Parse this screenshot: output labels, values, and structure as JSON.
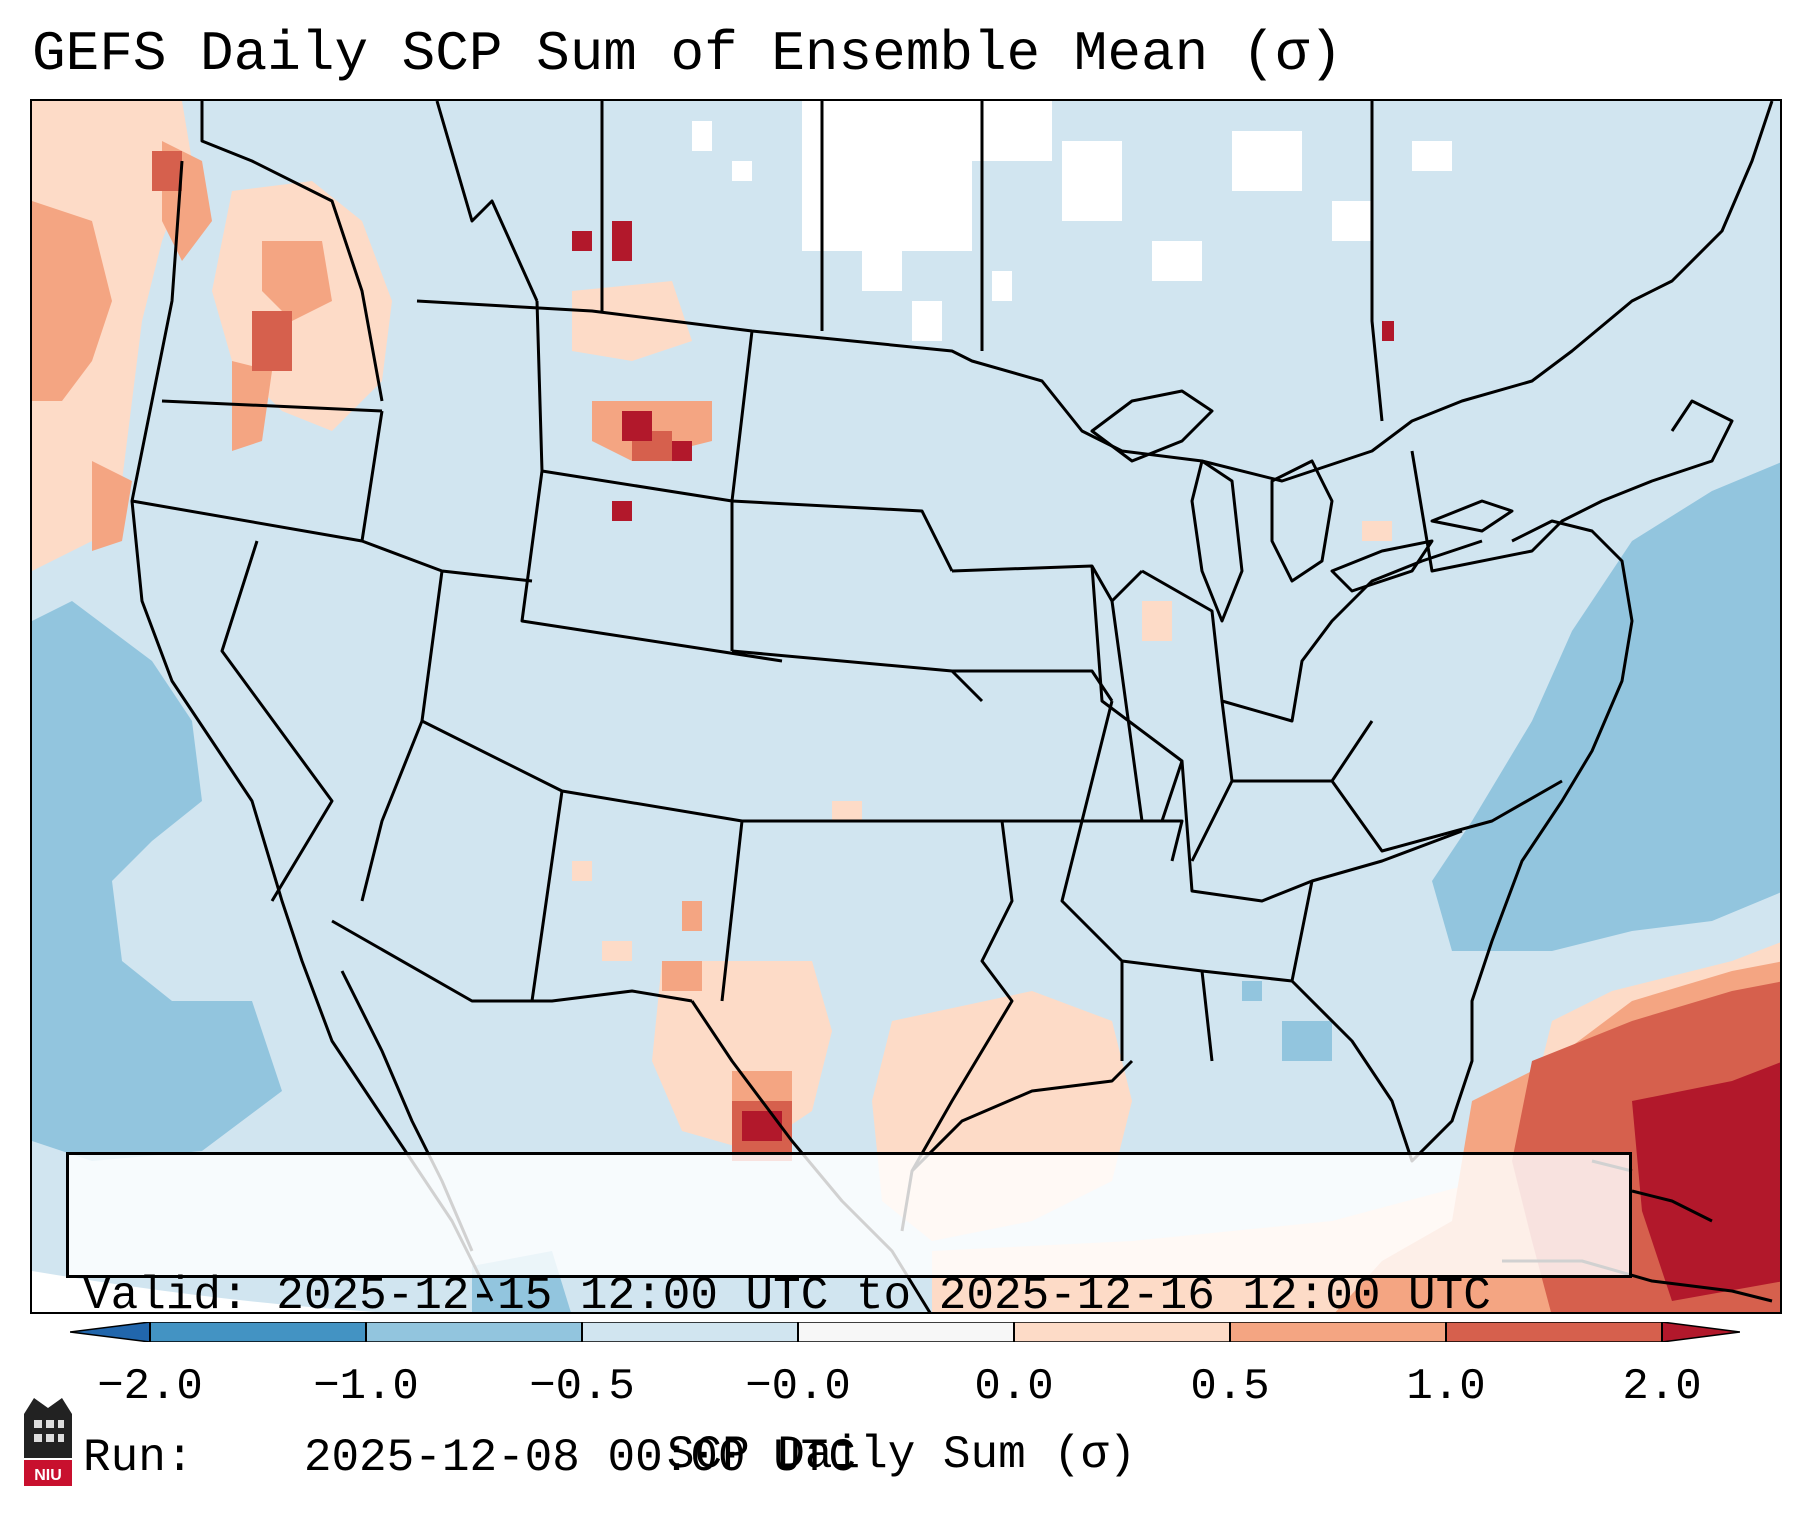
{
  "title": "GEFS Daily SCP Sum of Ensemble Mean (σ)",
  "info": {
    "valid_label": "Valid:",
    "valid_value": "2025-12-15 12:00 UTC to 2025-12-16 12:00 UTC",
    "run_label": "Run:",
    "run_value": "2025-12-08 00:00 UTC"
  },
  "colorbar": {
    "label": "SCP Daily Sum (σ)",
    "tick_labels": [
      "−2.0",
      "−1.0",
      "−0.5",
      "−0.0",
      "0.0",
      "0.5",
      "1.0",
      "2.0"
    ],
    "colors": {
      "extend_low": "#2166ac",
      "bin_neg2_neg1": "#4393c3",
      "bin_neg1_neg05": "#92c5de",
      "bin_neg05_0": "#d1e5f0",
      "bin_zero": "#f7f7f7",
      "bin_0_05": "#fddbc7",
      "bin_05_1": "#f4a582",
      "bin_1_2": "#d6604d",
      "extend_high": "#b2182b"
    }
  },
  "logo": {
    "icon": "niu-logo-icon",
    "text": "NIU"
  }
}
